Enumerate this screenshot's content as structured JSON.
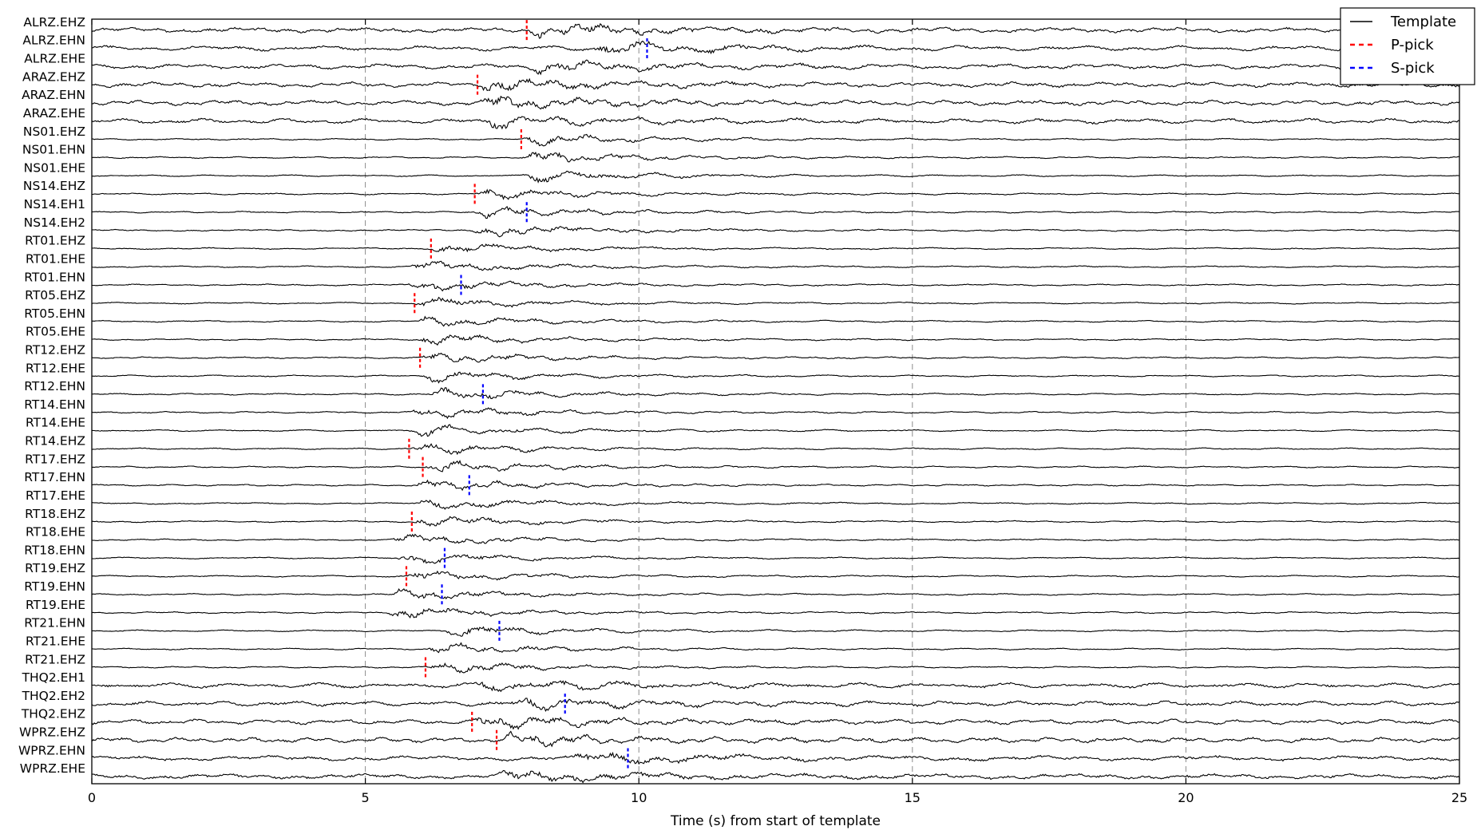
{
  "chart_data": {
    "type": "line",
    "title": "",
    "xlabel": "Time (s) from start of template",
    "ylabel": "",
    "xlim": [
      0,
      25
    ],
    "x_ticks": [
      0,
      5,
      10,
      15,
      20,
      25
    ],
    "grid": "vertical dashed at x ticks",
    "legend": {
      "placement": "top-right",
      "entries": [
        {
          "label": "Template",
          "style": "solid",
          "color": "#000000"
        },
        {
          "label": "P-pick",
          "style": "dashed",
          "color": "#ff0000"
        },
        {
          "label": "S-pick",
          "style": "dashed",
          "color": "#0000ff"
        }
      ]
    },
    "colors": {
      "trace": "#000000",
      "p_pick": "#ff0000",
      "s_pick": "#0000ff",
      "grid": "#8c8c8c"
    },
    "channels": [
      {
        "name": "ALRZ.EHZ",
        "p": 7.95
      },
      {
        "name": "ALRZ.EHN",
        "s": 10.15
      },
      {
        "name": "ALRZ.EHE"
      },
      {
        "name": "ARAZ.EHZ",
        "p": 7.05
      },
      {
        "name": "ARAZ.EHN"
      },
      {
        "name": "ARAZ.EHE"
      },
      {
        "name": "NS01.EHZ",
        "p": 7.85
      },
      {
        "name": "NS01.EHN"
      },
      {
        "name": "NS01.EHE"
      },
      {
        "name": "NS14.EHZ",
        "p": 7.0
      },
      {
        "name": "NS14.EH1",
        "s": 7.95
      },
      {
        "name": "NS14.EH2"
      },
      {
        "name": "RT01.EHZ",
        "p": 6.2
      },
      {
        "name": "RT01.EHE"
      },
      {
        "name": "RT01.EHN",
        "s": 6.75
      },
      {
        "name": "RT05.EHZ",
        "p": 5.9
      },
      {
        "name": "RT05.EHN"
      },
      {
        "name": "RT05.EHE"
      },
      {
        "name": "RT12.EHZ",
        "p": 6.0
      },
      {
        "name": "RT12.EHE"
      },
      {
        "name": "RT12.EHN",
        "s": 7.15
      },
      {
        "name": "RT14.EHN"
      },
      {
        "name": "RT14.EHE"
      },
      {
        "name": "RT14.EHZ",
        "p": 5.8
      },
      {
        "name": "RT17.EHZ",
        "p": 6.05
      },
      {
        "name": "RT17.EHN",
        "s": 6.9
      },
      {
        "name": "RT17.EHE"
      },
      {
        "name": "RT18.EHZ",
        "p": 5.85
      },
      {
        "name": "RT18.EHE"
      },
      {
        "name": "RT18.EHN",
        "s": 6.45
      },
      {
        "name": "RT19.EHZ",
        "p": 5.75
      },
      {
        "name": "RT19.EHN",
        "s": 6.4
      },
      {
        "name": "RT19.EHE"
      },
      {
        "name": "RT21.EHN",
        "s": 7.45
      },
      {
        "name": "RT21.EHE"
      },
      {
        "name": "RT21.EHZ",
        "p": 6.1
      },
      {
        "name": "THQ2.EH1"
      },
      {
        "name": "THQ2.EH2",
        "s": 8.65
      },
      {
        "name": "THQ2.EHZ",
        "p": 6.95
      },
      {
        "name": "WPRZ.EHZ",
        "p": 7.4
      },
      {
        "name": "WPRZ.EHN",
        "s": 9.8
      },
      {
        "name": "WPRZ.EHE"
      }
    ]
  }
}
